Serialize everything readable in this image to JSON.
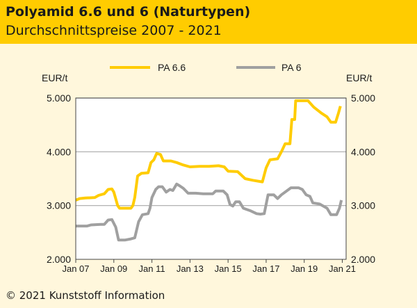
{
  "header": {
    "title": "Polyamid 6.6 und 6 (Naturtypen)",
    "subtitle": "Durchschnittspreise 2007 - 2021"
  },
  "footer": {
    "copyright": "© 2021 Kunststoff Information"
  },
  "colors": {
    "header_bg": "#ffcc00",
    "body_bg": "#fff7dc",
    "pa66": "#ffcc00",
    "pa6": "#a0a0a0",
    "grid": "#a8a8a8"
  },
  "chart_data": {
    "type": "line",
    "title": "Polyamid 6.6 und 6 (Naturtypen)",
    "subtitle": "Durchschnittspreise 2007 - 2021",
    "ylabel_left": "EUR/t",
    "ylabel_right": "EUR/t",
    "ylim": [
      2000,
      5000
    ],
    "yticks": [
      2000,
      3000,
      4000,
      5000
    ],
    "ytick_labels": [
      "2.000",
      "3.000",
      "4.000",
      "5.000"
    ],
    "xlim": [
      2007.0,
      2021.2
    ],
    "xticks": [
      2007,
      2009,
      2011,
      2013,
      2015,
      2017,
      2019,
      2021
    ],
    "xtick_labels": [
      "Jan 07",
      "Jan 09",
      "Jan 11",
      "Jan 13",
      "Jan 15",
      "Jan 17",
      "Jan 19",
      "Jan 21"
    ],
    "grid": "horizontal",
    "legend_position": "top",
    "series": [
      {
        "name": "PA 6.6",
        "points": [
          [
            2007.0,
            3100
          ],
          [
            2007.2,
            3130
          ],
          [
            2007.5,
            3140
          ],
          [
            2008.0,
            3150
          ],
          [
            2008.2,
            3190
          ],
          [
            2008.5,
            3220
          ],
          [
            2008.7,
            3300
          ],
          [
            2008.9,
            3310
          ],
          [
            2009.0,
            3250
          ],
          [
            2009.2,
            3000
          ],
          [
            2009.3,
            2950
          ],
          [
            2009.6,
            2950
          ],
          [
            2009.9,
            2950
          ],
          [
            2010.0,
            3000
          ],
          [
            2010.1,
            3150
          ],
          [
            2010.25,
            3550
          ],
          [
            2010.45,
            3600
          ],
          [
            2010.8,
            3610
          ],
          [
            2010.95,
            3800
          ],
          [
            2011.1,
            3850
          ],
          [
            2011.25,
            3970
          ],
          [
            2011.45,
            3950
          ],
          [
            2011.6,
            3830
          ],
          [
            2012.0,
            3830
          ],
          [
            2012.3,
            3800
          ],
          [
            2012.6,
            3760
          ],
          [
            2013.0,
            3720
          ],
          [
            2013.5,
            3730
          ],
          [
            2014.0,
            3730
          ],
          [
            2014.5,
            3740
          ],
          [
            2014.8,
            3720
          ],
          [
            2015.0,
            3640
          ],
          [
            2015.5,
            3630
          ],
          [
            2015.9,
            3500
          ],
          [
            2016.3,
            3470
          ],
          [
            2016.8,
            3440
          ],
          [
            2017.0,
            3700
          ],
          [
            2017.2,
            3850
          ],
          [
            2017.6,
            3870
          ],
          [
            2017.8,
            4000
          ],
          [
            2018.0,
            4150
          ],
          [
            2018.25,
            4150
          ],
          [
            2018.35,
            4600
          ],
          [
            2018.5,
            4600
          ],
          [
            2018.55,
            4950
          ],
          [
            2019.2,
            4950
          ],
          [
            2019.5,
            4830
          ],
          [
            2019.9,
            4720
          ],
          [
            2020.2,
            4650
          ],
          [
            2020.4,
            4550
          ],
          [
            2020.65,
            4550
          ],
          [
            2020.8,
            4720
          ],
          [
            2020.9,
            4850
          ]
        ]
      },
      {
        "name": "PA 6",
        "points": [
          [
            2007.0,
            2620
          ],
          [
            2007.3,
            2620
          ],
          [
            2007.6,
            2620
          ],
          [
            2007.8,
            2640
          ],
          [
            2008.3,
            2650
          ],
          [
            2008.5,
            2650
          ],
          [
            2008.7,
            2730
          ],
          [
            2008.9,
            2740
          ],
          [
            2009.1,
            2600
          ],
          [
            2009.25,
            2360
          ],
          [
            2009.6,
            2360
          ],
          [
            2009.9,
            2380
          ],
          [
            2010.1,
            2400
          ],
          [
            2010.3,
            2700
          ],
          [
            2010.5,
            2830
          ],
          [
            2010.8,
            2850
          ],
          [
            2010.9,
            2950
          ],
          [
            2011.0,
            3150
          ],
          [
            2011.2,
            3300
          ],
          [
            2011.35,
            3350
          ],
          [
            2011.55,
            3350
          ],
          [
            2011.75,
            3250
          ],
          [
            2011.95,
            3300
          ],
          [
            2012.1,
            3280
          ],
          [
            2012.3,
            3400
          ],
          [
            2012.45,
            3370
          ],
          [
            2012.65,
            3320
          ],
          [
            2012.9,
            3230
          ],
          [
            2013.3,
            3230
          ],
          [
            2013.7,
            3220
          ],
          [
            2014.2,
            3220
          ],
          [
            2014.35,
            3270
          ],
          [
            2014.75,
            3270
          ],
          [
            2014.95,
            3200
          ],
          [
            2015.1,
            3020
          ],
          [
            2015.25,
            2990
          ],
          [
            2015.4,
            3070
          ],
          [
            2015.6,
            3070
          ],
          [
            2015.8,
            2950
          ],
          [
            2016.2,
            2900
          ],
          [
            2016.5,
            2850
          ],
          [
            2016.7,
            2840
          ],
          [
            2016.9,
            2850
          ],
          [
            2017.1,
            3200
          ],
          [
            2017.4,
            3200
          ],
          [
            2017.6,
            3130
          ],
          [
            2017.8,
            3200
          ],
          [
            2018.3,
            3330
          ],
          [
            2018.7,
            3330
          ],
          [
            2018.9,
            3300
          ],
          [
            2019.1,
            3200
          ],
          [
            2019.3,
            3170
          ],
          [
            2019.45,
            3050
          ],
          [
            2019.8,
            3030
          ],
          [
            2020.2,
            2950
          ],
          [
            2020.4,
            2830
          ],
          [
            2020.7,
            2830
          ],
          [
            2020.85,
            2950
          ],
          [
            2020.95,
            3100
          ]
        ]
      }
    ]
  }
}
